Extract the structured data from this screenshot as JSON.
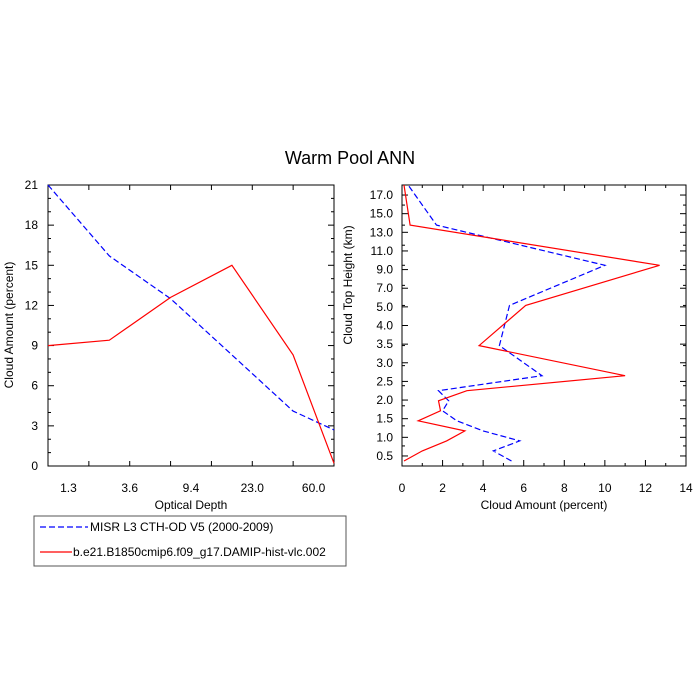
{
  "figure_title": "Warm Pool ANN",
  "legend": {
    "entries": [
      {
        "label": "MISR L3 CTH-OD V5 (2000-2009)",
        "color": "#0000ff",
        "style": "dashed"
      },
      {
        "label": "b.e21.B1850cmip6.f09_g17.DAMIP-hist-vlc.002",
        "color": "#ff0000",
        "style": "solid"
      }
    ]
  },
  "chart_data": [
    {
      "type": "line",
      "title": "",
      "xlabel": "Optical Depth",
      "ylabel": "Cloud Amount (percent)",
      "x_tick_labels": [
        "1.3",
        "3.6",
        "9.4",
        "23.0",
        "60.0"
      ],
      "ylim": [
        0,
        21
      ],
      "yticks": [
        0,
        3,
        6,
        9,
        12,
        15,
        18,
        21
      ],
      "grid": false,
      "series": [
        {
          "name": "MISR L3 CTH-OD V5 (2000-2009)",
          "color": "#0000ff",
          "dash": true,
          "x": [
            0,
            1.5,
            3,
            4.5,
            6,
            7
          ],
          "y": [
            21.0,
            15.7,
            12.5,
            8.3,
            4.1,
            2.7
          ]
        },
        {
          "name": "b.e21.B1850cmip6.f09_g17.DAMIP-hist-vlc.002",
          "color": "#ff0000",
          "dash": false,
          "x": [
            0,
            1.5,
            3,
            4.5,
            6,
            7
          ],
          "y": [
            9.0,
            9.4,
            12.6,
            15.0,
            8.3,
            0.2
          ]
        }
      ]
    },
    {
      "type": "line",
      "title": "",
      "xlabel": "Cloud Amount (percent)",
      "ylabel": "Cloud Top Height (km)",
      "xlim": [
        0,
        14
      ],
      "xticks": [
        0,
        2,
        4,
        6,
        8,
        10,
        12,
        14
      ],
      "y_tick_labels": [
        "0.5",
        "1.0",
        "1.5",
        "2.0",
        "2.5",
        "3.0",
        "3.5",
        "4.0",
        "5.0",
        "7.0",
        "9.0",
        "11.0",
        "13.0",
        "15.0",
        "17.0"
      ],
      "grid": false,
      "series": [
        {
          "name": "MISR L3 CTH-OD V5 (2000-2009)",
          "color": "#0000ff",
          "dash": true,
          "x": [
            5.4,
            4.5,
            5.8,
            4.0,
            2.7,
            2.0,
            2.3,
            1.8,
            6.9,
            4.8,
            5.3,
            10.0,
            1.7,
            0.3
          ],
          "y": [
            0.25,
            0.75,
            1.25,
            1.75,
            2.25,
            2.75,
            3.25,
            3.75,
            4.5,
            6,
            8,
            10,
            12,
            14
          ]
        },
        {
          "name": "b.e21.B1850cmip6.f09_g17.DAMIP-hist-vlc.002",
          "color": "#ff0000",
          "dash": false,
          "x": [
            0.1,
            1.0,
            2.2,
            3.1,
            0.8,
            1.9,
            1.8,
            3.2,
            11.0,
            3.8,
            6.1,
            12.7,
            0.4,
            0.1
          ],
          "y": [
            0.25,
            0.75,
            1.25,
            1.75,
            2.25,
            2.75,
            3.25,
            3.75,
            4.5,
            6,
            8,
            10,
            12,
            14
          ]
        }
      ]
    }
  ]
}
